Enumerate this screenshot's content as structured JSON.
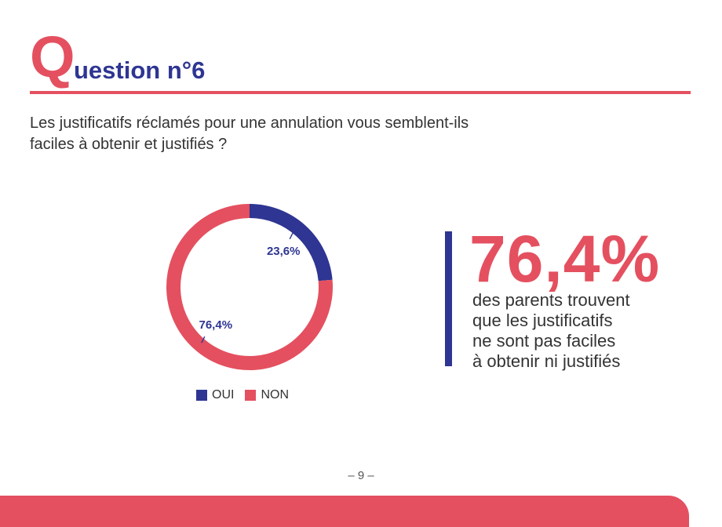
{
  "header": {
    "letter": "Q",
    "rest": "uestion n°6"
  },
  "question_lines": [
    "Les justificatifs réclamés pour une annulation vous semblent-ils",
    "faciles à obtenir et justifiés ?"
  ],
  "colors": {
    "oui": "#2e3592",
    "non": "#e4505f",
    "label": "#2e3592"
  },
  "chart_data": {
    "type": "pie",
    "style": "donut",
    "categories": [
      "OUI",
      "NON"
    ],
    "values": [
      23.6,
      76.4
    ],
    "labels": [
      "23,6%",
      "76,4%"
    ],
    "legend": [
      "OUI",
      "NON"
    ],
    "legend_position": "bottom"
  },
  "highlight": {
    "value": "76,4%",
    "text_lines": [
      "des parents trouvent",
      "que les justificatifs",
      "ne sont pas faciles",
      "à obtenir ni justifiés"
    ]
  },
  "page_number": "– 9 –"
}
